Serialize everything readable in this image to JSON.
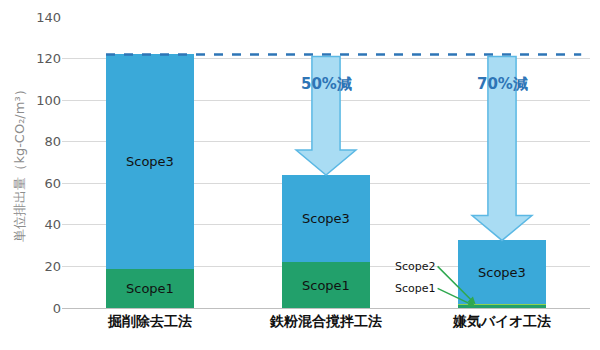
{
  "chart_data": {
    "type": "bar",
    "stacked": true,
    "categories": [
      "掘削除去工法",
      "鉄粉混合撹拌工法",
      "嫌気バイオ工法"
    ],
    "series": [
      {
        "name": "Scope1",
        "color": "#22a06b",
        "values": [
          19,
          22,
          1.5
        ]
      },
      {
        "name": "Scope2",
        "color": "#8fd14f",
        "values": [
          null,
          null,
          0.5
        ]
      },
      {
        "name": "Scope3",
        "color": "#3aa9d9",
        "values": [
          103,
          42,
          30.5
        ]
      }
    ],
    "y_label": "単位排出量（kg-CO₂/m³）",
    "ylim": [
      0,
      140
    ],
    "yticks": [
      0,
      20,
      40,
      60,
      80,
      100,
      120,
      140
    ],
    "grid": true,
    "annotations": [
      {
        "category": "鉄粉混合撹拌工法",
        "text": "50%減"
      },
      {
        "category": "嫌気バイオ工法",
        "text": "70%減"
      }
    ]
  }
}
